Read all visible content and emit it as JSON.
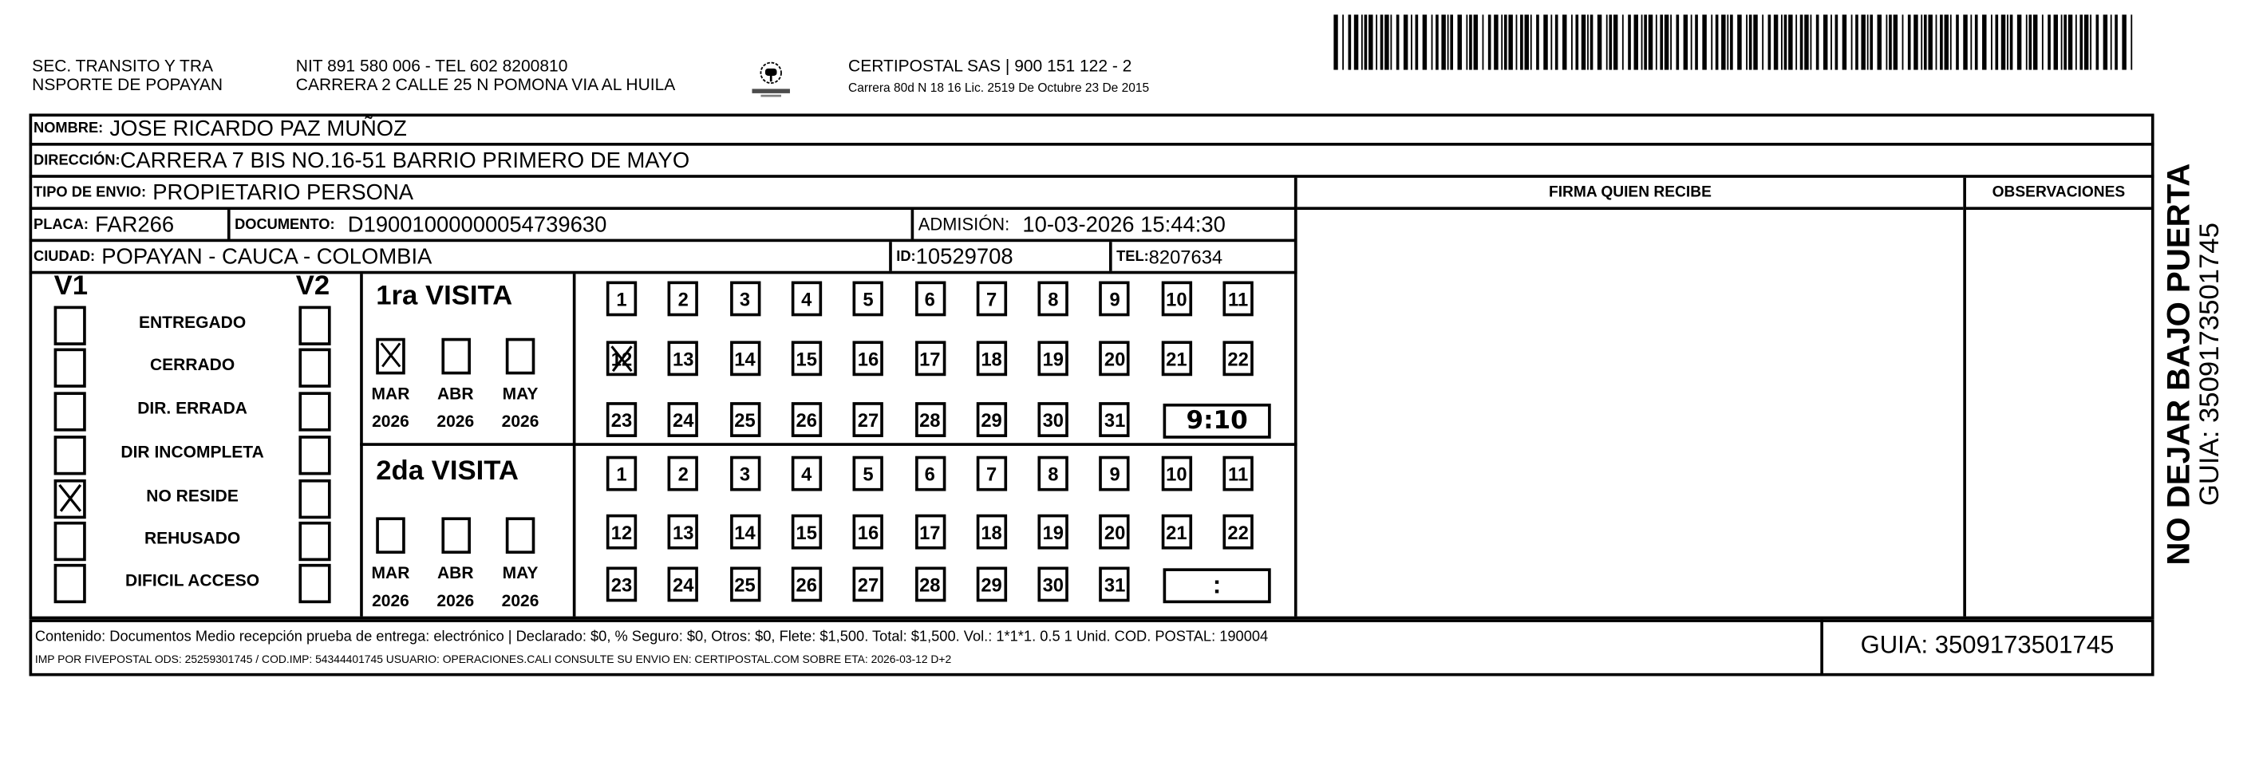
{
  "header": {
    "sender_line1": "SEC. TRANSITO Y TRA",
    "sender_line2": "NSPORTE DE POPAYAN",
    "nit_line": "NIT 891 580 006 - TEL 602 8200810",
    "address_line": "CARRERA 2 CALLE 25 N POMONA VIA AL HUILA",
    "logo_text": "CERTIPOSTAL",
    "company_line": "CERTIPOSTAL SAS | 900 151 122 - 2",
    "license_line": "Carrera 80d N 18 16  Lic. 2519 De Octubre 23 De 2015",
    "barcode_icon": "barcode"
  },
  "recipient": {
    "nombre_label": "NOMBRE:",
    "nombre": "JOSE RICARDO PAZ MUÑOZ",
    "direccion_label": "DIRECCIÓN:",
    "direccion": "CARRERA 7 BIS NO.16-51 BARRIO PRIMERO DE MAYO",
    "tipo_label": "TIPO DE ENVIO:",
    "tipo": "PROPIETARIO PERSONA",
    "placa_label": "PLACA:",
    "placa": "FAR266",
    "documento_label": "DOCUMENTO:",
    "documento": "D19001000000054739630",
    "admision_label": "ADMISIÓN:",
    "admision": "10-03-2026 15:44:30",
    "ciudad_label": "CIUDAD:",
    "ciudad": "POPAYAN - CAUCA - COLOMBIA",
    "id_label": "ID:",
    "id": "10529708",
    "tel_label": "TEL:",
    "tel": "8207634"
  },
  "signature": {
    "firma_label": "FIRMA QUIEN RECIBE",
    "observaciones_label": "OBSERVACIONES"
  },
  "status": {
    "v1_label": "V1",
    "v2_label": "V2",
    "options": [
      {
        "label": "ENTREGADO",
        "v1": false,
        "v2": false
      },
      {
        "label": "CERRADO",
        "v1": false,
        "v2": false
      },
      {
        "label": "DIR. ERRADA",
        "v1": false,
        "v2": false
      },
      {
        "label": "DIR INCOMPLETA",
        "v1": false,
        "v2": false
      },
      {
        "label": "NO RESIDE",
        "v1": true,
        "v2": false
      },
      {
        "label": "REHUSADO",
        "v1": false,
        "v2": false
      },
      {
        "label": "DIFICIL ACCESO",
        "v1": false,
        "v2": false
      }
    ]
  },
  "visits": [
    {
      "title": "1ra VISITA",
      "months": [
        {
          "month": "MAR",
          "year": "2026",
          "checked": true
        },
        {
          "month": "ABR",
          "year": "2026",
          "checked": false
        },
        {
          "month": "MAY",
          "year": "2026",
          "checked": false
        }
      ],
      "days": [
        "1",
        "2",
        "3",
        "4",
        "5",
        "6",
        "7",
        "8",
        "9",
        "10",
        "11",
        "12",
        "13",
        "14",
        "15",
        "16",
        "17",
        "18",
        "19",
        "20",
        "21",
        "22",
        "23",
        "24",
        "25",
        "26",
        "27",
        "28",
        "29",
        "30",
        "31"
      ],
      "checked_day": "12",
      "time": "9:10"
    },
    {
      "title": "2da VISITA",
      "months": [
        {
          "month": "MAR",
          "year": "2026",
          "checked": false
        },
        {
          "month": "ABR",
          "year": "2026",
          "checked": false
        },
        {
          "month": "MAY",
          "year": "2026",
          "checked": false
        }
      ],
      "days": [
        "1",
        "2",
        "3",
        "4",
        "5",
        "6",
        "7",
        "8",
        "9",
        "10",
        "11",
        "12",
        "13",
        "14",
        "15",
        "16",
        "17",
        "18",
        "19",
        "20",
        "21",
        "22",
        "23",
        "24",
        "25",
        "26",
        "27",
        "28",
        "29",
        "30",
        "31"
      ],
      "checked_day": null,
      "time": ":"
    }
  ],
  "footer": {
    "line1": "Contenido: Documentos Medio recepción prueba de entrega: electrónico | Declarado: $0, % Seguro: $0, Otros: $0, Flete: $1,500. Total: $1,500. Vol.: 1*1*1. 0.5  1 Unid. COD. POSTAL: 190004",
    "line2": "IMP POR FIVEPOSTAL ODS: 25259301745 / COD.IMP: 54344401745 USUARIO: OPERACIONES.CALI CONSULTE SU ENVIO EN: CERTIPOSTAL.COM SOBRE ETA: 2026-03-12 D+2",
    "guia": "GUIA: 3509173501745"
  },
  "side": {
    "warning": "NO DEJAR BAJO PUERTA",
    "guia": "GUIA: 3509173501745"
  }
}
